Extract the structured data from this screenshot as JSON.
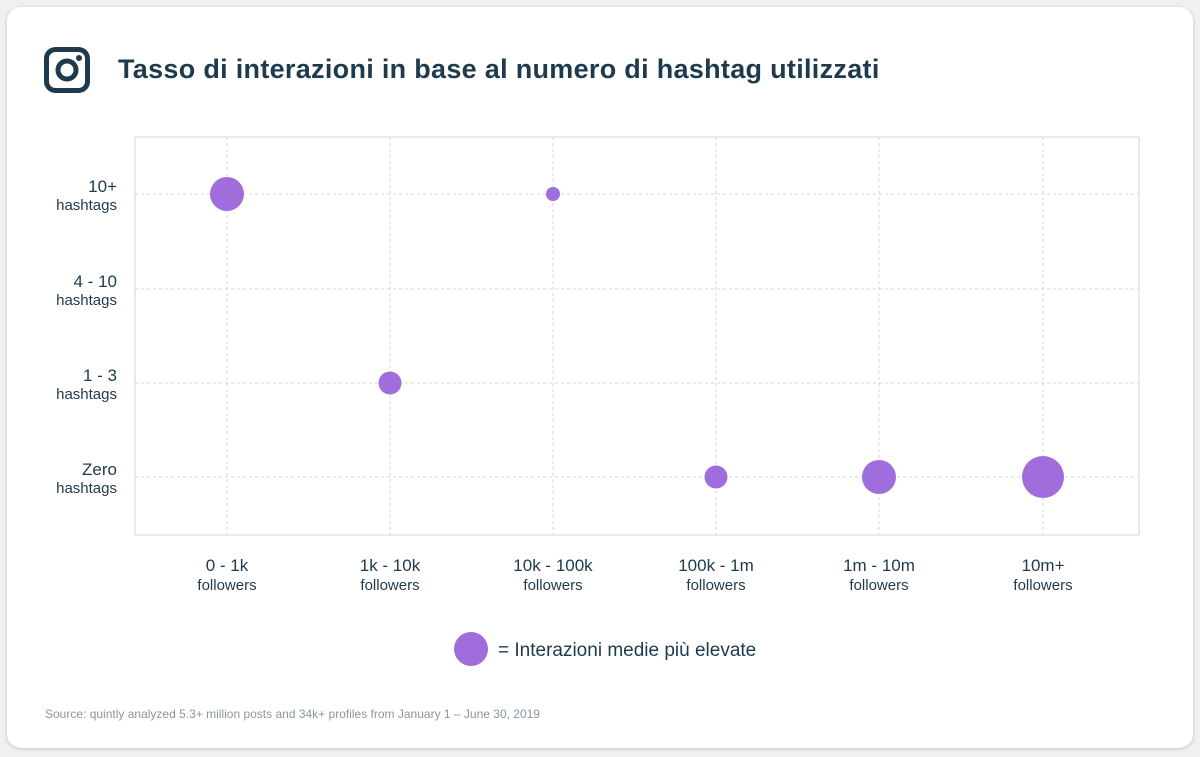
{
  "header": {
    "title": "Tasso di interazioni in base al numero di hashtag utilizzati",
    "logo_icon": "instagram-icon"
  },
  "colors": {
    "bubble": "#a06ddc",
    "text": "#1e3a4c",
    "grid": "#d3d6da"
  },
  "chart_data": {
    "type": "scatter",
    "title": "Tasso di interazioni in base al numero di hashtag utilizzati",
    "x_categories": [
      {
        "main": "0 - 1k",
        "sub": "followers"
      },
      {
        "main": "1k - 10k",
        "sub": "followers"
      },
      {
        "main": "10k - 100k",
        "sub": "followers"
      },
      {
        "main": "100k - 1m",
        "sub": "followers"
      },
      {
        "main": "1m - 10m",
        "sub": "followers"
      },
      {
        "main": "10m+",
        "sub": "followers"
      }
    ],
    "y_categories": [
      {
        "main": "10+",
        "sub": "hashtags"
      },
      {
        "main": "4 - 10",
        "sub": "hashtags"
      },
      {
        "main": "1 - 3",
        "sub": "hashtags"
      },
      {
        "main": "Zero",
        "sub": "hashtags"
      }
    ],
    "points": [
      {
        "x": "0 - 1k",
        "y": "10+",
        "size": 17
      },
      {
        "x": "1k - 10k",
        "y": "1 - 3",
        "size": 11.5
      },
      {
        "x": "10k - 100k",
        "y": "10+",
        "size": 7
      },
      {
        "x": "100k - 1m",
        "y": "Zero",
        "size": 11.5
      },
      {
        "x": "1m - 10m",
        "y": "Zero",
        "size": 17
      },
      {
        "x": "10m+",
        "y": "Zero",
        "size": 21
      }
    ],
    "grid": true,
    "legend": {
      "label": "Interazioni medie più elevate",
      "prefix": "=",
      "placement": "bottom-center"
    }
  },
  "footer": {
    "source_label": "Source:",
    "source_text": "quintly analyzed 5.3+ million posts and 34k+ profiles from January 1 – June 30, 2019"
  }
}
